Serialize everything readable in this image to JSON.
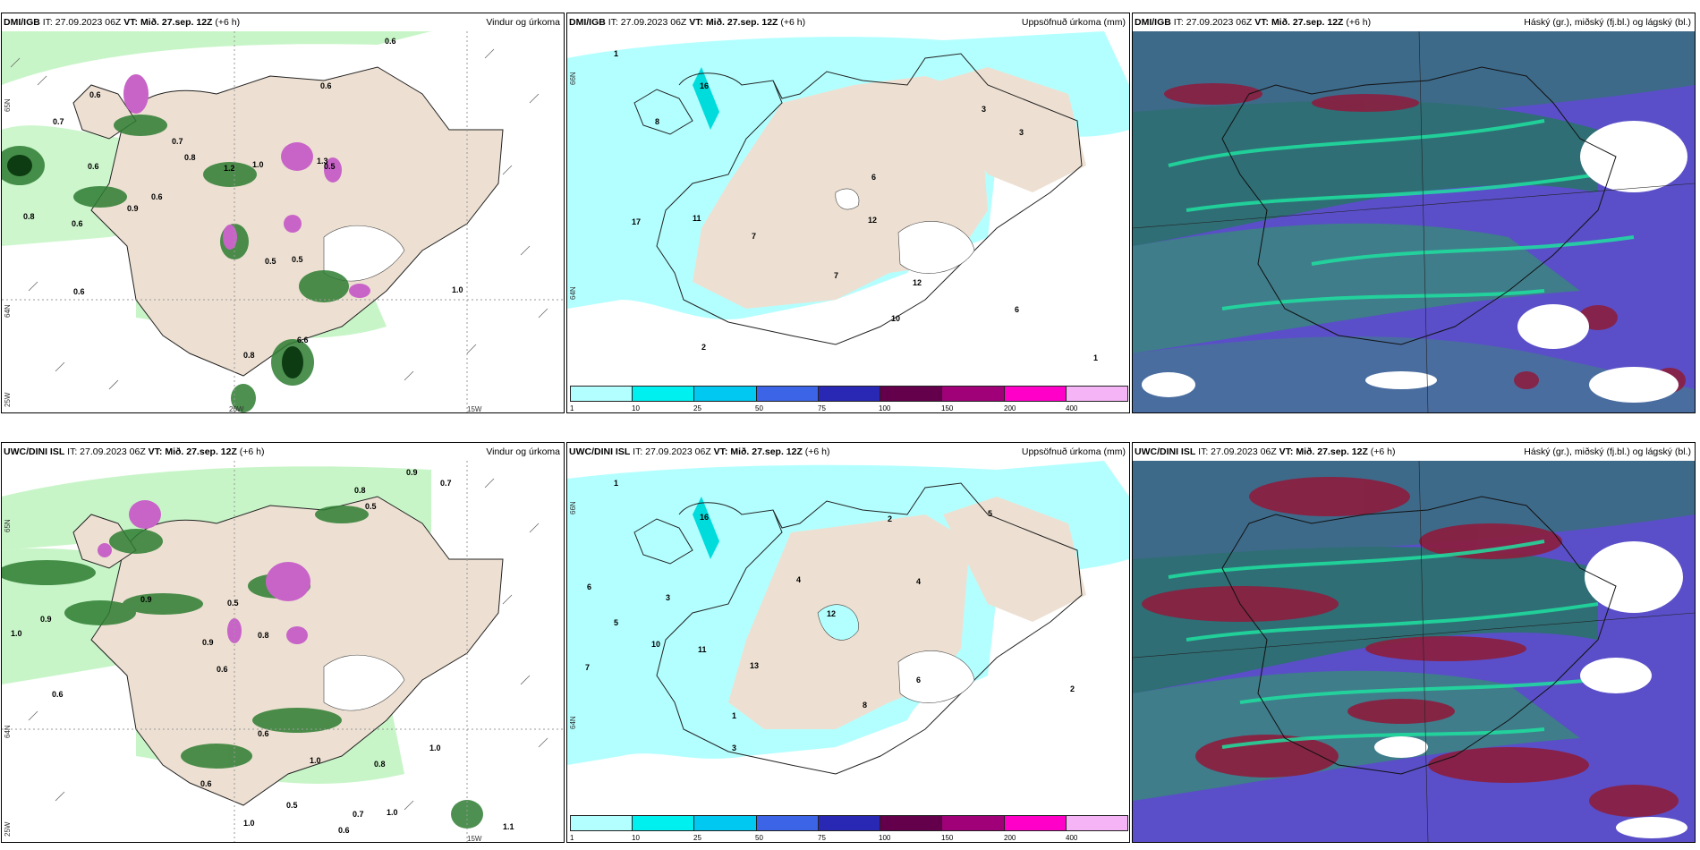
{
  "panels": [
    {
      "model": "DMI/IGB",
      "it": "IT: 27.09.2023 06Z",
      "vt_label": "VT:",
      "vt": "Mið. 27.sep. 12Z",
      "offset": "(+6 h)",
      "field": "Vindur og úrkoma"
    },
    {
      "model": "DMI/IGB",
      "it": "IT: 27.09.2023 06Z",
      "vt_label": "VT:",
      "vt": "Mið. 27.sep. 12Z",
      "offset": "(+6 h)",
      "field": "Uppsöfnuð úrkoma (mm)"
    },
    {
      "model": "DMI/IGB",
      "it": "IT: 27.09.2023 06Z",
      "vt_label": "VT:",
      "vt": "Mið. 27.sep. 12Z",
      "offset": "(+6 h)",
      "field": "Háský (gr.), miðský (fj.bl.) og lágský (bl.)"
    },
    {
      "model": "UWC/DINI ISL",
      "it": "IT: 27.09.2023 06Z",
      "vt_label": "VT:",
      "vt": "Mið. 27.sep. 12Z",
      "offset": "(+6 h)",
      "field": "Vindur og úrkoma"
    },
    {
      "model": "UWC/DINI ISL",
      "it": "IT: 27.09.2023 06Z",
      "vt_label": "VT:",
      "vt": "Mið. 27.sep. 12Z",
      "offset": "(+6 h)",
      "field": "Uppsöfnuð úrkoma (mm)"
    },
    {
      "model": "UWC/DINI ISL",
      "it": "IT: 27.09.2023 06Z",
      "vt_label": "VT:",
      "vt": "Mið. 27.sep. 12Z",
      "offset": "(+6 h)",
      "field": "Háský (gr.), miðský (fj.bl.) og lágský (bl.)"
    }
  ],
  "axes": {
    "lat1": "65N",
    "lat2": "64N",
    "lon1": "25W",
    "lon2": "20W",
    "lon3": "15W",
    "lat_top": "66N",
    "lat_mid": "64N"
  },
  "colorbar": {
    "ticks": [
      "1",
      "10",
      "25",
      "50",
      "75",
      "100",
      "150",
      "200",
      "400"
    ],
    "colors": [
      "#b3ffff",
      "#00f0f0",
      "#00c8f0",
      "#3c64e6",
      "#2828b4",
      "#64004b",
      "#a00078",
      "#ff00c8",
      "#f5b4f5"
    ]
  },
  "labels": {
    "wind_top": [
      "0.6",
      "0.6",
      "0.7",
      "0.6",
      "0.7",
      "0.8",
      "0.6",
      "0.6",
      "0.9",
      "0.8",
      "0.6",
      "0.5",
      "0.5",
      "0.5",
      "1.0",
      "0.6",
      "1.2",
      "1.0",
      "0.8",
      "1.3",
      "6.6"
    ],
    "accum_top": [
      "1",
      "3",
      "3",
      "6",
      "12",
      "7",
      "7",
      "17",
      "11",
      "12",
      "8",
      "10",
      "6",
      "2",
      "1",
      "16"
    ],
    "wind_bot": [
      "0.9",
      "0.8",
      "0.5",
      "0.7",
      "1.0",
      "0.9",
      "0.6",
      "0.9",
      "0.5",
      "0.9",
      "0.8",
      "0.6",
      "0.6",
      "1.0",
      "1.1",
      "0.8",
      "1.0",
      "0.6",
      "0.5",
      "1.0",
      "0.7",
      "1.0",
      "0.6"
    ],
    "accum_bot": [
      "1",
      "2",
      "5",
      "6",
      "3",
      "4",
      "12",
      "10",
      "16",
      "13",
      "11",
      "8",
      "4",
      "7",
      "5",
      "3",
      "2",
      "1",
      "6"
    ]
  }
}
